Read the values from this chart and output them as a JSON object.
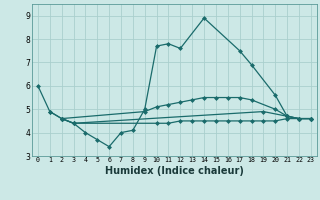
{
  "xlabel": "Humidex (Indice chaleur)",
  "bg_color": "#cce8e6",
  "grid_color": "#aacfcd",
  "line_color": "#1a6b6b",
  "x": [
    0,
    1,
    2,
    3,
    4,
    5,
    6,
    7,
    8,
    9,
    10,
    11,
    12,
    13,
    14,
    15,
    16,
    17,
    18,
    19,
    20,
    21,
    22,
    23
  ],
  "series1": [
    6.0,
    4.9,
    4.6,
    4.4,
    4.0,
    3.7,
    3.4,
    4.0,
    4.1,
    5.0,
    7.7,
    7.8,
    7.6,
    8.9,
    7.5,
    6.9,
    5.6,
    4.7,
    4.6,
    4.6
  ],
  "series1_x": [
    0,
    1,
    2,
    3,
    4,
    5,
    6,
    7,
    8,
    9,
    10,
    11,
    12,
    14,
    17,
    18,
    20,
    21,
    22,
    23
  ],
  "series2": [
    4.6,
    4.4,
    4.9,
    4.7,
    4.6,
    4.6
  ],
  "series2_x": [
    2,
    3,
    19,
    21,
    22,
    23
  ],
  "series3": [
    4.9,
    4.6,
    4.9,
    5.1,
    5.2,
    5.3,
    5.4,
    5.5,
    5.5,
    5.5,
    5.5,
    5.4,
    5.0,
    4.7,
    4.6,
    4.6
  ],
  "series3_x": [
    1,
    2,
    9,
    10,
    11,
    12,
    13,
    14,
    15,
    16,
    17,
    18,
    20,
    21,
    22,
    23
  ],
  "series4": [
    4.6,
    4.4,
    4.4,
    4.4,
    4.5,
    4.5,
    4.5,
    4.5,
    4.5,
    4.5,
    4.5,
    4.5,
    4.5,
    4.6,
    4.6,
    4.6
  ],
  "series4_x": [
    2,
    3,
    10,
    11,
    12,
    13,
    14,
    15,
    16,
    17,
    18,
    19,
    20,
    21,
    22,
    23
  ],
  "ylim": [
    3,
    9.5
  ],
  "xlim": [
    -0.5,
    23.5
  ],
  "yticks": [
    3,
    4,
    5,
    6,
    7,
    8,
    9
  ],
  "xticks": [
    0,
    1,
    2,
    3,
    4,
    5,
    6,
    7,
    8,
    9,
    10,
    11,
    12,
    13,
    14,
    15,
    16,
    17,
    18,
    19,
    20,
    21,
    22,
    23
  ]
}
